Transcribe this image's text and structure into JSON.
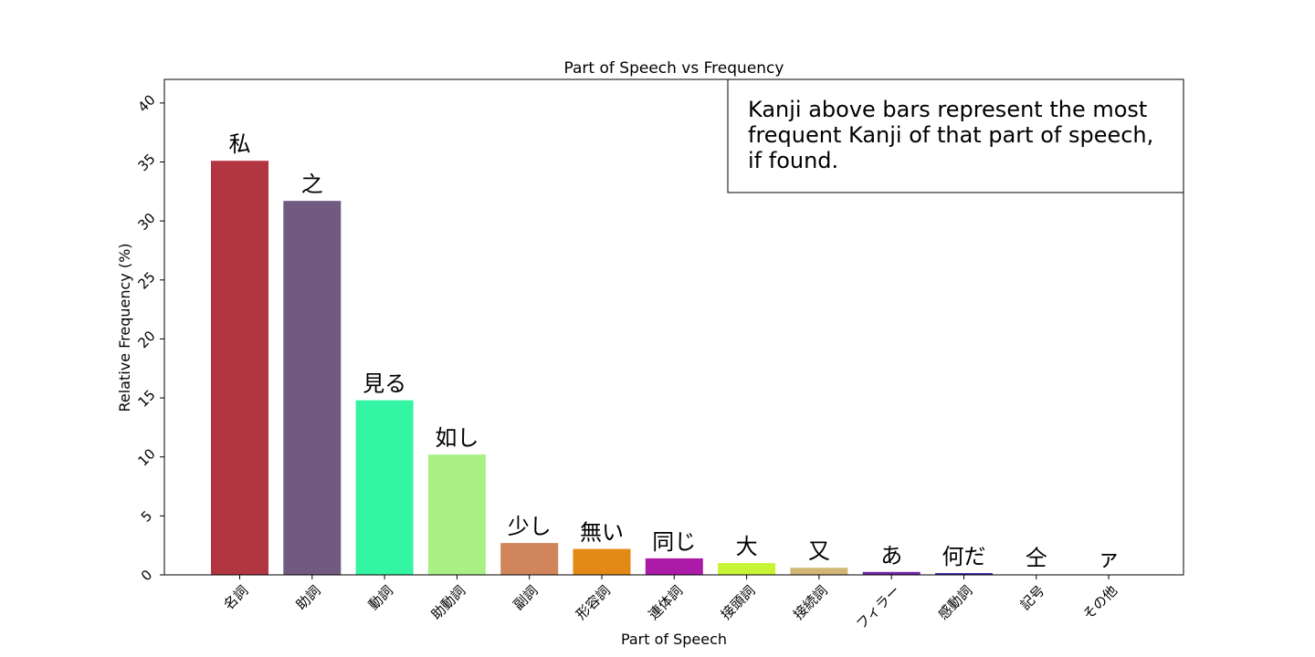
{
  "chart_data": {
    "type": "bar",
    "title": "Part of Speech vs Frequency",
    "xlabel": "Part of Speech",
    "ylabel": "Relative Frequency (%)",
    "ylim": [
      0,
      42
    ],
    "yticks": [
      0,
      5,
      10,
      15,
      20,
      25,
      30,
      35,
      40
    ],
    "grid": false,
    "categories": [
      "名詞",
      "助詞",
      "動詞",
      "助動詞",
      "副詞",
      "形容詞",
      "連体詞",
      "接頭詞",
      "接続詞",
      "フィラー",
      "感動詞",
      "記号",
      "その他"
    ],
    "values": [
      35.1,
      31.7,
      14.8,
      10.2,
      2.7,
      2.2,
      1.4,
      1.0,
      0.6,
      0.25,
      0.15,
      0.02,
      0.01
    ],
    "bar_labels": [
      "私",
      "之",
      "見る",
      "如し",
      "少し",
      "無い",
      "同じ",
      "大",
      "又",
      "あ",
      "何だ",
      "仝",
      "ァ"
    ],
    "colors": [
      "#b23642",
      "#705a82",
      "#33f5a4",
      "#a8f084",
      "#d0855b",
      "#e38a16",
      "#ab1ba7",
      "#c7f535",
      "#d2b676",
      "#7326a9",
      "#3b1fb4",
      "#1c8a8a",
      "#e03a3a"
    ],
    "annotation": [
      "Kanji above bars represent the most",
      "frequent Kanji of that part of speech,",
      "if found."
    ]
  }
}
